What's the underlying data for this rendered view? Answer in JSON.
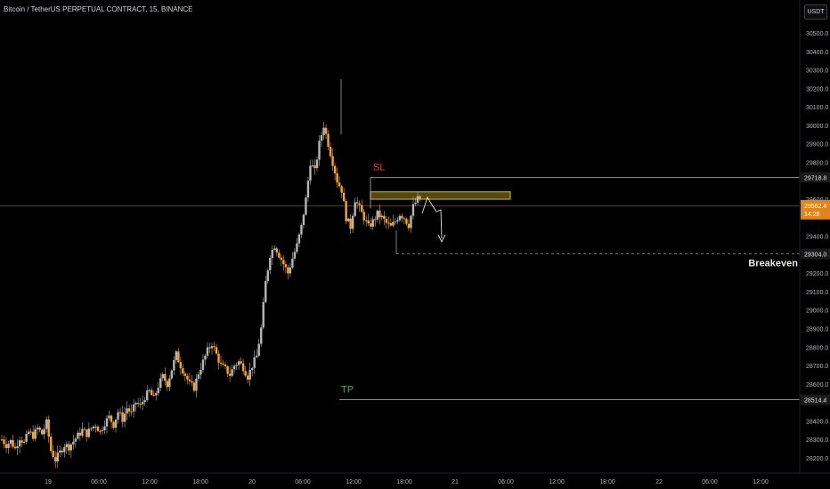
{
  "title": "Bitcoin / TetherUS PERPETUAL CONTRACT, 15, BINANCE",
  "currency_label": "USDT",
  "colors": {
    "background": "#000000",
    "candle_up": "#b6b6b6",
    "candle_down": "#f7a23b",
    "axis_text": "#b2b5be",
    "current_price_line": "#e07a1f",
    "sl_label": "#f23645",
    "tp_label": "#4caf50",
    "zone_fill": "#5c5212",
    "zone_border": "#c9b22c"
  },
  "y_axis_ticks": [
    "30500.0",
    "30400.0",
    "30300.0",
    "30200.0",
    "30100.0",
    "30000.0",
    "29900.0",
    "29800.0",
    "29600.0",
    "29400.0",
    "29200.0",
    "29100.0",
    "29000.0",
    "28900.0",
    "28800.0",
    "28700.0",
    "28600.0",
    "28400.0",
    "28300.0",
    "28200.0"
  ],
  "x_axis_ticks": [
    "19",
    "06:00",
    "12:00",
    "18:00",
    "20",
    "06:00",
    "12:00",
    "18:00",
    "21",
    "06:00",
    "12:00",
    "18:00",
    "22",
    "06:00",
    "12:00"
  ],
  "price_tags": {
    "sl_level": "29718.8",
    "current_price": "29562.4",
    "countdown": "14:28",
    "breakeven_level": "29304.0",
    "tp_level": "28514.4"
  },
  "annotations": {
    "sl": "SL",
    "tp": "TP",
    "breakeven": "Breakeven"
  },
  "chart_data": {
    "type": "candlestick",
    "symbol": "BTCUSDT",
    "levels": {
      "sl": 29718.8,
      "current": 29562.4,
      "breakeven": 29304.0,
      "tp": 28514.4
    },
    "resistance_zone": [
      29600,
      29640
    ],
    "ylim": [
      28100,
      30620
    ],
    "x_range": [
      "19",
      "22 12:00"
    ],
    "path_close": [
      28300,
      28270,
      28290,
      28250,
      28310,
      28280,
      28340,
      28320,
      28360,
      28330,
      28390,
      28240,
      28190,
      28230,
      28270,
      28260,
      28290,
      28320,
      28350,
      28330,
      28360,
      28380,
      28340,
      28390,
      28420,
      28380,
      28450,
      28410,
      28470,
      28440,
      28500,
      28480,
      28530,
      28560,
      28520,
      28590,
      28640,
      28600,
      28680,
      28760,
      28700,
      28650,
      28600,
      28580,
      28660,
      28720,
      28780,
      28820,
      28760,
      28700,
      28680,
      28650,
      28700,
      28720,
      28690,
      28640,
      28700,
      28750,
      28900,
      29150,
      29300,
      29350,
      29300,
      29250,
      29200,
      29280,
      29350,
      29450,
      29600,
      29800,
      29750,
      29900,
      30000,
      29900,
      29800,
      29700,
      29650,
      29500,
      29450,
      29600,
      29550,
      29500,
      29450,
      29480,
      29520,
      29500,
      29470,
      29450,
      29480,
      29520,
      29500,
      29460,
      29560,
      29600
    ]
  }
}
